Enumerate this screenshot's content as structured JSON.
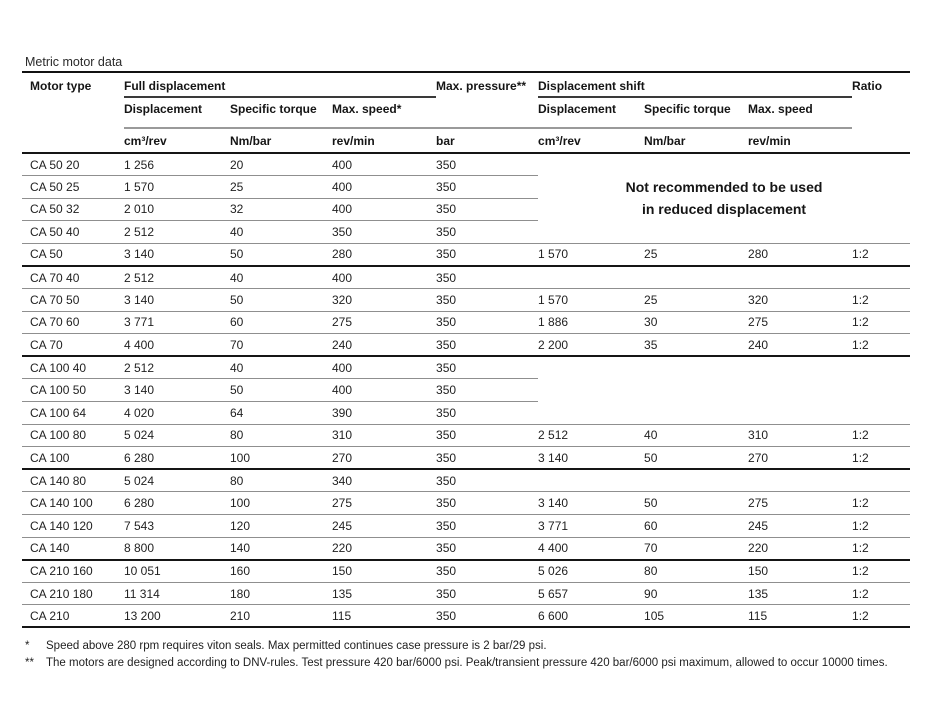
{
  "page": {
    "title": "Metric motor data"
  },
  "colors": {
    "rule_black": "#151515",
    "rule_dark_gray": "#3a3a3a",
    "rule_gray": "#8f8f8f",
    "text": "#1f1f1f",
    "background": "#ffffff"
  },
  "table": {
    "header": {
      "motor_type": "Motor type",
      "full_displacement": "Full displacement",
      "max_pressure": "Max. pressure**",
      "displacement_shift": "Displacement shift",
      "ratio": "Ratio",
      "sub": {
        "displacement": "Displacement",
        "specific_torque": "Specific torque",
        "max_speed_star": "Max. speed*",
        "max_speed": "Max. speed"
      },
      "units": {
        "cm3_rev": "cm³/rev",
        "nm_bar": "Nm/bar",
        "rev_min": "rev/min",
        "bar": "bar"
      }
    },
    "notice": {
      "line1": "Not recommended to be used",
      "line2": "in reduced displacement"
    },
    "rows": [
      {
        "motor": "CA 50 20",
        "displacement": "1 256",
        "specific_torque": "20",
        "max_speed": "400",
        "max_pressure": "350",
        "shift": null,
        "ratio": "",
        "notice_span": true,
        "in_notice_span": false,
        "right_separator": false,
        "group_end": false
      },
      {
        "motor": "CA 50 25",
        "displacement": "1 570",
        "specific_torque": "25",
        "max_speed": "400",
        "max_pressure": "350",
        "shift": null,
        "ratio": "",
        "notice_span": false,
        "in_notice_span": true,
        "right_separator": false,
        "group_end": false
      },
      {
        "motor": "CA 50 32",
        "displacement": "2 010",
        "specific_torque": "32",
        "max_speed": "400",
        "max_pressure": "350",
        "shift": null,
        "ratio": "",
        "notice_span": false,
        "in_notice_span": true,
        "right_separator": false,
        "group_end": false
      },
      {
        "motor": "CA 50 40",
        "displacement": "2 512",
        "specific_torque": "40",
        "max_speed": "350",
        "max_pressure": "350",
        "shift": null,
        "ratio": "",
        "notice_span": false,
        "in_notice_span": true,
        "right_separator": false,
        "group_end": false
      },
      {
        "motor": "CA 50",
        "displacement": "3 140",
        "specific_torque": "50",
        "max_speed": "280",
        "max_pressure": "350",
        "shift": {
          "displacement": "1 570",
          "specific_torque": "25",
          "max_speed": "280"
        },
        "ratio": "1:2",
        "notice_span": false,
        "in_notice_span": false,
        "right_separator": true,
        "group_end": true
      },
      {
        "motor": "CA 70 40",
        "displacement": "2 512",
        "specific_torque": "40",
        "max_speed": "400",
        "max_pressure": "350",
        "shift": null,
        "ratio": "",
        "notice_span": false,
        "in_notice_span": false,
        "right_separator": true,
        "group_end": false
      },
      {
        "motor": "CA 70 50",
        "displacement": "3 140",
        "specific_torque": "50",
        "max_speed": "320",
        "max_pressure": "350",
        "shift": {
          "displacement": "1 570",
          "specific_torque": "25",
          "max_speed": "320"
        },
        "ratio": "1:2",
        "notice_span": false,
        "in_notice_span": false,
        "right_separator": true,
        "group_end": false
      },
      {
        "motor": "CA 70 60",
        "displacement": "3 771",
        "specific_torque": "60",
        "max_speed": "275",
        "max_pressure": "350",
        "shift": {
          "displacement": "1 886",
          "specific_torque": "30",
          "max_speed": "275"
        },
        "ratio": "1:2",
        "notice_span": false,
        "in_notice_span": false,
        "right_separator": true,
        "group_end": false
      },
      {
        "motor": "CA 70",
        "displacement": "4 400",
        "specific_torque": "70",
        "max_speed": "240",
        "max_pressure": "350",
        "shift": {
          "displacement": "2 200",
          "specific_torque": "35",
          "max_speed": "240"
        },
        "ratio": "1:2",
        "notice_span": false,
        "in_notice_span": false,
        "right_separator": true,
        "group_end": true
      },
      {
        "motor": "CA 100 40",
        "displacement": "2 512",
        "specific_torque": "40",
        "max_speed": "400",
        "max_pressure": "350",
        "shift": null,
        "ratio": "",
        "notice_span": false,
        "in_notice_span": false,
        "right_separator": false,
        "group_end": false
      },
      {
        "motor": "CA 100 50",
        "displacement": "3 140",
        "specific_torque": "50",
        "max_speed": "400",
        "max_pressure": "350",
        "shift": null,
        "ratio": "",
        "notice_span": false,
        "in_notice_span": false,
        "right_separator": false,
        "group_end": false
      },
      {
        "motor": "CA 100 64",
        "displacement": "4 020",
        "specific_torque": "64",
        "max_speed": "390",
        "max_pressure": "350",
        "shift": null,
        "ratio": "",
        "notice_span": false,
        "in_notice_span": false,
        "right_separator": true,
        "group_end": false
      },
      {
        "motor": "CA 100 80",
        "displacement": "5 024",
        "specific_torque": "80",
        "max_speed": "310",
        "max_pressure": "350",
        "shift": {
          "displacement": "2 512",
          "specific_torque": "40",
          "max_speed": "310"
        },
        "ratio": "1:2",
        "notice_span": false,
        "in_notice_span": false,
        "right_separator": true,
        "group_end": false
      },
      {
        "motor": "CA 100",
        "displacement": "6 280",
        "specific_torque": "100",
        "max_speed": "270",
        "max_pressure": "350",
        "shift": {
          "displacement": "3 140",
          "specific_torque": "50",
          "max_speed": "270"
        },
        "ratio": "1:2",
        "notice_span": false,
        "in_notice_span": false,
        "right_separator": true,
        "group_end": true
      },
      {
        "motor": "CA 140 80",
        "displacement": "5 024",
        "specific_torque": "80",
        "max_speed": "340",
        "max_pressure": "350",
        "shift": null,
        "ratio": "",
        "notice_span": false,
        "in_notice_span": false,
        "right_separator": true,
        "group_end": false
      },
      {
        "motor": "CA 140 100",
        "displacement": "6 280",
        "specific_torque": "100",
        "max_speed": "275",
        "max_pressure": "350",
        "shift": {
          "displacement": "3 140",
          "specific_torque": "50",
          "max_speed": "275"
        },
        "ratio": "1:2",
        "notice_span": false,
        "in_notice_span": false,
        "right_separator": true,
        "group_end": false
      },
      {
        "motor": "CA 140 120",
        "displacement": "7 543",
        "specific_torque": "120",
        "max_speed": "245",
        "max_pressure": "350",
        "shift": {
          "displacement": "3 771",
          "specific_torque": "60",
          "max_speed": "245"
        },
        "ratio": "1:2",
        "notice_span": false,
        "in_notice_span": false,
        "right_separator": true,
        "group_end": false
      },
      {
        "motor": "CA 140",
        "displacement": "8 800",
        "specific_torque": "140",
        "max_speed": "220",
        "max_pressure": "350",
        "shift": {
          "displacement": "4 400",
          "specific_torque": "70",
          "max_speed": "220"
        },
        "ratio": "1:2",
        "notice_span": false,
        "in_notice_span": false,
        "right_separator": true,
        "group_end": true
      },
      {
        "motor": "CA 210 160",
        "displacement": "10 051",
        "specific_torque": "160",
        "max_speed": "150",
        "max_pressure": "350",
        "shift": {
          "displacement": "5 026",
          "specific_torque": "80",
          "max_speed": "150"
        },
        "ratio": "1:2",
        "notice_span": false,
        "in_notice_span": false,
        "right_separator": true,
        "group_end": false
      },
      {
        "motor": "CA 210 180",
        "displacement": "11 314",
        "specific_torque": "180",
        "max_speed": "135",
        "max_pressure": "350",
        "shift": {
          "displacement": "5 657",
          "specific_torque": "90",
          "max_speed": "135"
        },
        "ratio": "1:2",
        "notice_span": false,
        "in_notice_span": false,
        "right_separator": true,
        "group_end": false
      },
      {
        "motor": "CA 210",
        "displacement": "13 200",
        "specific_torque": "210",
        "max_speed": "115",
        "max_pressure": "350",
        "shift": {
          "displacement": "6 600",
          "specific_torque": "105",
          "max_speed": "115"
        },
        "ratio": "1:2",
        "notice_span": false,
        "in_notice_span": false,
        "right_separator": true,
        "group_end": true
      }
    ]
  },
  "footnotes": [
    {
      "marker": "*",
      "text": "Speed above 280 rpm requires viton seals. Max permitted continues case pressure is 2 bar/29 psi."
    },
    {
      "marker": "**",
      "text": "The motors are designed according to DNV-rules. Test pressure 420 bar/6000 psi. Peak/transient pressure 420 bar/6000 psi maximum, allowed to occur 10000 times."
    }
  ]
}
